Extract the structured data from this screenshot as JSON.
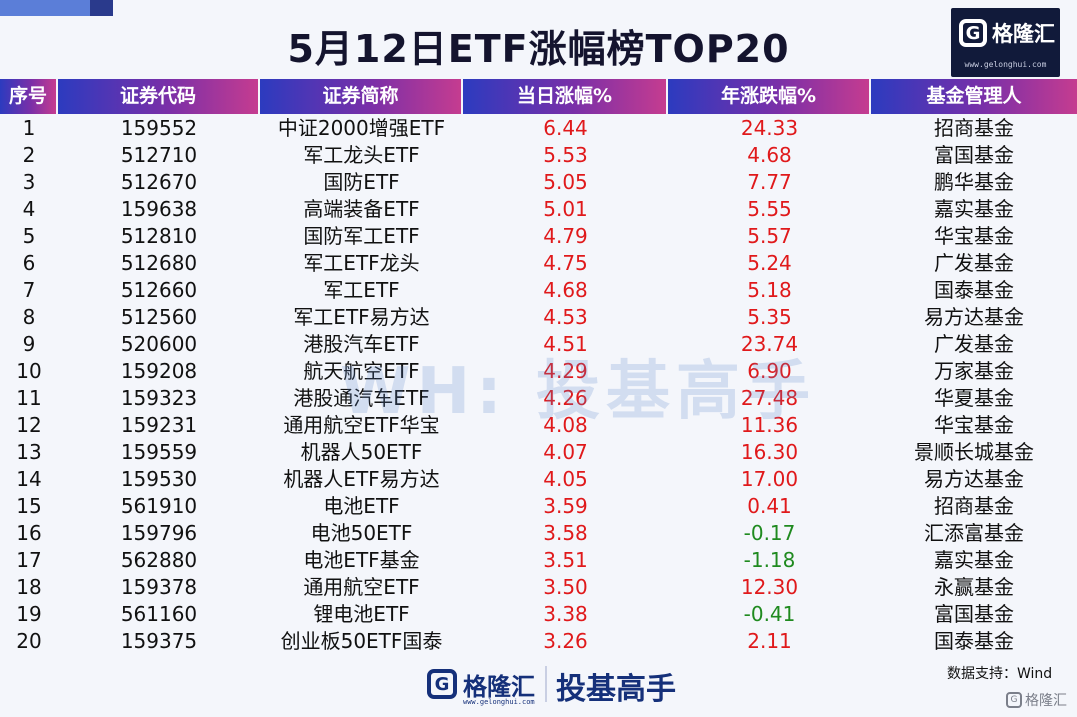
{
  "title": "5月12日ETF涨幅榜TOP20",
  "logo": {
    "glyph": "G",
    "brand": "格隆汇",
    "url": "www.gelonghui.com"
  },
  "columns": [
    "序号",
    "证券代码",
    "证券简称",
    "当日涨幅%",
    "年涨跌幅%",
    "基金管理人"
  ],
  "rows": [
    {
      "rank": "1",
      "code": "159552",
      "name": "中证2000增强ETF",
      "day": "6.44",
      "year": "24.33",
      "mgr": "招商基金"
    },
    {
      "rank": "2",
      "code": "512710",
      "name": "军工龙头ETF",
      "day": "5.53",
      "year": "4.68",
      "mgr": "富国基金"
    },
    {
      "rank": "3",
      "code": "512670",
      "name": "国防ETF",
      "day": "5.05",
      "year": "7.77",
      "mgr": "鹏华基金"
    },
    {
      "rank": "4",
      "code": "159638",
      "name": "高端装备ETF",
      "day": "5.01",
      "year": "5.55",
      "mgr": "嘉实基金"
    },
    {
      "rank": "5",
      "code": "512810",
      "name": "国防军工ETF",
      "day": "4.79",
      "year": "5.57",
      "mgr": "华宝基金"
    },
    {
      "rank": "6",
      "code": "512680",
      "name": "军工ETF龙头",
      "day": "4.75",
      "year": "5.24",
      "mgr": "广发基金"
    },
    {
      "rank": "7",
      "code": "512660",
      "name": "军工ETF",
      "day": "4.68",
      "year": "5.18",
      "mgr": "国泰基金"
    },
    {
      "rank": "8",
      "code": "512560",
      "name": "军工ETF易方达",
      "day": "4.53",
      "year": "5.35",
      "mgr": "易方达基金"
    },
    {
      "rank": "9",
      "code": "520600",
      "name": "港股汽车ETF",
      "day": "4.51",
      "year": "23.74",
      "mgr": "广发基金"
    },
    {
      "rank": "10",
      "code": "159208",
      "name": "航天航空ETF",
      "day": "4.29",
      "year": "6.90",
      "mgr": "万家基金"
    },
    {
      "rank": "11",
      "code": "159323",
      "name": "港股通汽车ETF",
      "day": "4.26",
      "year": "27.48",
      "mgr": "华夏基金"
    },
    {
      "rank": "12",
      "code": "159231",
      "name": "通用航空ETF华宝",
      "day": "4.08",
      "year": "11.36",
      "mgr": "华宝基金"
    },
    {
      "rank": "13",
      "code": "159559",
      "name": "机器人50ETF",
      "day": "4.07",
      "year": "16.30",
      "mgr": "景顺长城基金"
    },
    {
      "rank": "14",
      "code": "159530",
      "name": "机器人ETF易方达",
      "day": "4.05",
      "year": "17.00",
      "mgr": "易方达基金"
    },
    {
      "rank": "15",
      "code": "561910",
      "name": "电池ETF",
      "day": "3.59",
      "year": "0.41",
      "mgr": "招商基金"
    },
    {
      "rank": "16",
      "code": "159796",
      "name": "电池50ETF",
      "day": "3.58",
      "year": "-0.17",
      "mgr": "汇添富基金"
    },
    {
      "rank": "17",
      "code": "562880",
      "name": "电池ETF基金",
      "day": "3.51",
      "year": "-1.18",
      "mgr": "嘉实基金"
    },
    {
      "rank": "18",
      "code": "159378",
      "name": "通用航空ETF",
      "day": "3.50",
      "year": "12.30",
      "mgr": "永赢基金"
    },
    {
      "rank": "19",
      "code": "561160",
      "name": "锂电池ETF",
      "day": "3.38",
      "year": "-0.41",
      "mgr": "富国基金"
    },
    {
      "rank": "20",
      "code": "159375",
      "name": "创业板50ETF国泰",
      "day": "3.26",
      "year": "2.11",
      "mgr": "国泰基金"
    }
  ],
  "colors": {
    "positive": "#e0191b",
    "negative": "#1f8a1f"
  },
  "watermark": "WH: 投基高手",
  "footer": {
    "glyph": "G",
    "brand": "格隆汇",
    "url": "www.gelonghui.com",
    "slogan": "投基高手",
    "source": "数据支持：Wind"
  },
  "bottom_logo": {
    "glyph": "G",
    "brand": "格隆汇"
  }
}
